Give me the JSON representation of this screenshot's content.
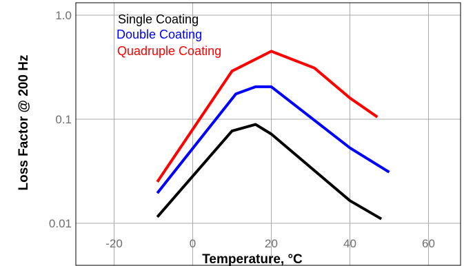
{
  "chart_data": {
    "type": "line",
    "ylog": true,
    "xlabel": "Temperature, °C",
    "ylabel": "Loss Factor @ 200 Hz",
    "xlim": [
      -35,
      70
    ],
    "ylim": [
      0.008,
      1.0
    ],
    "xticks": [
      -20,
      0,
      20,
      40,
      60
    ],
    "xtick_labels": [
      "-20",
      "0",
      "20",
      "40",
      "60"
    ],
    "yticks": [
      0.01,
      0.1,
      1.0
    ],
    "ytick_labels": [
      "0.01",
      "0.1",
      "1.0"
    ],
    "grid": true,
    "legend_position": "top-left",
    "series": [
      {
        "name": "Single Coating",
        "color": "#000000",
        "x": [
          -9,
          10,
          16,
          20,
          40,
          48
        ],
        "y": [
          0.0115,
          0.077,
          0.089,
          0.072,
          0.0165,
          0.011
        ]
      },
      {
        "name": "Double Coating",
        "color": "#0000ff",
        "x": [
          -9,
          11,
          16,
          20,
          40,
          50
        ],
        "y": [
          0.0195,
          0.175,
          0.205,
          0.205,
          0.053,
          0.031
        ]
      },
      {
        "name": "Quadruple Coating",
        "color": "#ff0000",
        "x": [
          -9,
          10,
          20,
          31,
          40,
          47
        ],
        "y": [
          0.025,
          0.29,
          0.45,
          0.31,
          0.16,
          0.105
        ]
      }
    ]
  }
}
